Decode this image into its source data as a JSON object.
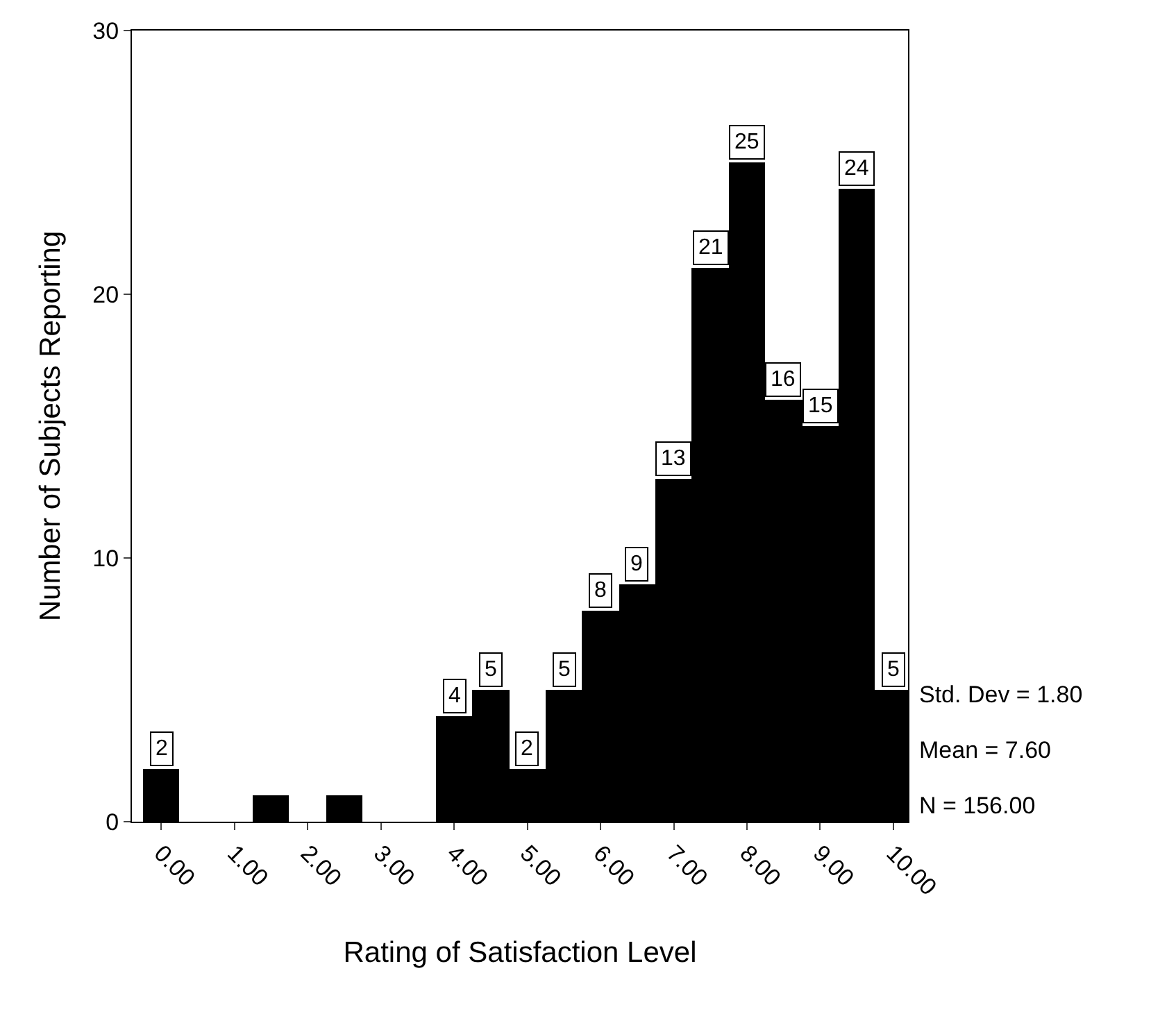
{
  "chart_data": {
    "type": "histogram",
    "xlabel": "Rating of Satisfaction Level",
    "ylabel": "Number of Subjects Reporting",
    "bins": [
      -0.25,
      0.25,
      0.75,
      1.25,
      1.75,
      2.25,
      2.75,
      3.25,
      3.75,
      4.25,
      4.75,
      5.25,
      5.75,
      6.25,
      6.75,
      7.25,
      7.75,
      8.25,
      8.75,
      9.25,
      9.75,
      10.25
    ],
    "values": [
      2,
      0,
      0,
      1,
      0,
      1,
      0,
      0,
      4,
      5,
      2,
      5,
      8,
      9,
      13,
      21,
      25,
      16,
      15,
      24,
      5
    ],
    "value_labels": [
      "2",
      null,
      null,
      null,
      null,
      null,
      null,
      null,
      "4",
      "5",
      "2",
      "5",
      "8",
      "9",
      "13",
      "21",
      "25",
      "16",
      "15",
      "24",
      "5"
    ],
    "color": "#000000",
    "xlim": [
      -0.4,
      10.2
    ],
    "xticks": [
      {
        "value": 0,
        "label": "0.00"
      },
      {
        "value": 1,
        "label": "1.00"
      },
      {
        "value": 2,
        "label": "2.00"
      },
      {
        "value": 3,
        "label": "3.00"
      },
      {
        "value": 4,
        "label": "4.00"
      },
      {
        "value": 5,
        "label": "5.00"
      },
      {
        "value": 6,
        "label": "6.00"
      },
      {
        "value": 7,
        "label": "7.00"
      },
      {
        "value": 8,
        "label": "8.00"
      },
      {
        "value": 9,
        "label": "9.00"
      },
      {
        "value": 10,
        "label": "10.00"
      }
    ],
    "ylim": [
      0,
      30
    ],
    "yticks": [
      0,
      10,
      20,
      30
    ],
    "grid": false,
    "annotations": [
      "Std. Dev = 1.80",
      "Mean = 7.60",
      "N = 156.00"
    ]
  }
}
